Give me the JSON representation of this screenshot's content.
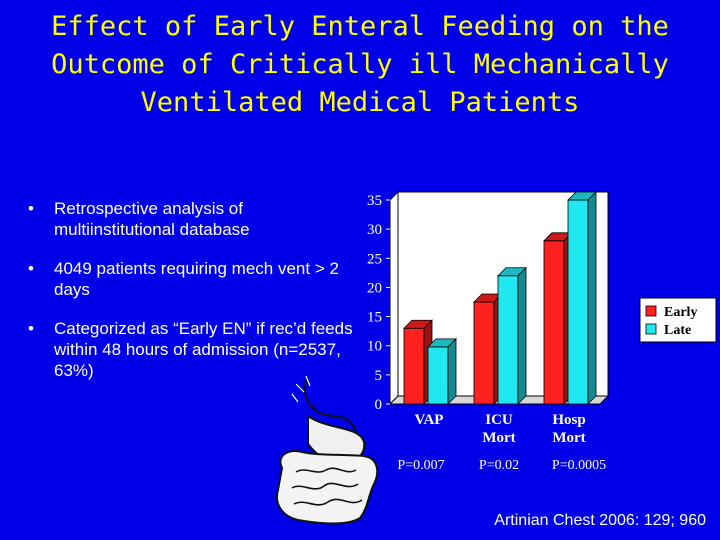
{
  "slide": {
    "title": "Effect of Early Enteral Feeding on the Outcome of Critically ill Mechanically Ventilated Medical Patients",
    "bullets": [
      "Retrospective analysis of multiinstitutional database",
      "4049 patients requiring mech vent > 2 days",
      "Categorized as “Early EN” if rec’d feeds within 48 hours of admission (n=2537, 63%)"
    ],
    "citation": "Artinian Chest 2006: 129; 960",
    "illustration": "gastrointestinal-tract-drawing"
  },
  "chart_data": {
    "type": "bar",
    "categories": [
      "VAP",
      "ICU Mort",
      "Hosp Mort"
    ],
    "series": [
      {
        "name": "Early",
        "color": "#ff2020",
        "values": [
          13,
          17.5,
          28
        ]
      },
      {
        "name": "Late",
        "color": "#20e8f0",
        "values": [
          9.8,
          22,
          35
        ]
      }
    ],
    "p_values": [
      "P=0.007",
      "P=0.02",
      "P=0.0005"
    ],
    "title": "",
    "xlabel": "",
    "ylabel": "",
    "ylim": [
      0,
      35
    ],
    "yticks": [
      0,
      5,
      10,
      15,
      20,
      25,
      30,
      35
    ],
    "grid": false,
    "legend_position": "right",
    "style": "3d-bars",
    "colors": {
      "background": "#0000e8",
      "title": "#ffff00",
      "text": "#ffffff"
    }
  }
}
